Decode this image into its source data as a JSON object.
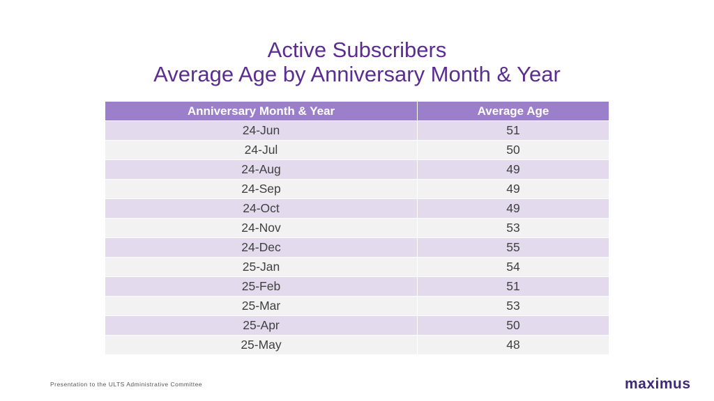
{
  "slide": {
    "title_line1": "Active Subscribers",
    "title_line2": "Average Age by Anniversary Month & Year",
    "footer": "Presentation to the ULTS Administrative Committee",
    "logo": "maximus"
  },
  "table": {
    "headers": [
      "Anniversary Month & Year",
      "Average Age"
    ],
    "rows": [
      [
        "24-Jun",
        "51"
      ],
      [
        "24-Jul",
        "50"
      ],
      [
        "24-Aug",
        "49"
      ],
      [
        "24-Sep",
        "49"
      ],
      [
        "24-Oct",
        "49"
      ],
      [
        "24-Nov",
        "53"
      ],
      [
        "24-Dec",
        "55"
      ],
      [
        "25-Jan",
        "54"
      ],
      [
        "25-Feb",
        "51"
      ],
      [
        "25-Mar",
        "53"
      ],
      [
        "25-Apr",
        "50"
      ],
      [
        "25-May",
        "48"
      ]
    ]
  },
  "colors": {
    "title": "#5b2d91",
    "header_bg": "#9b7fcb",
    "row_band_light_purple": "#e3daee",
    "row_band_gray": "#f2f2f2",
    "logo": "#3d2a73"
  }
}
